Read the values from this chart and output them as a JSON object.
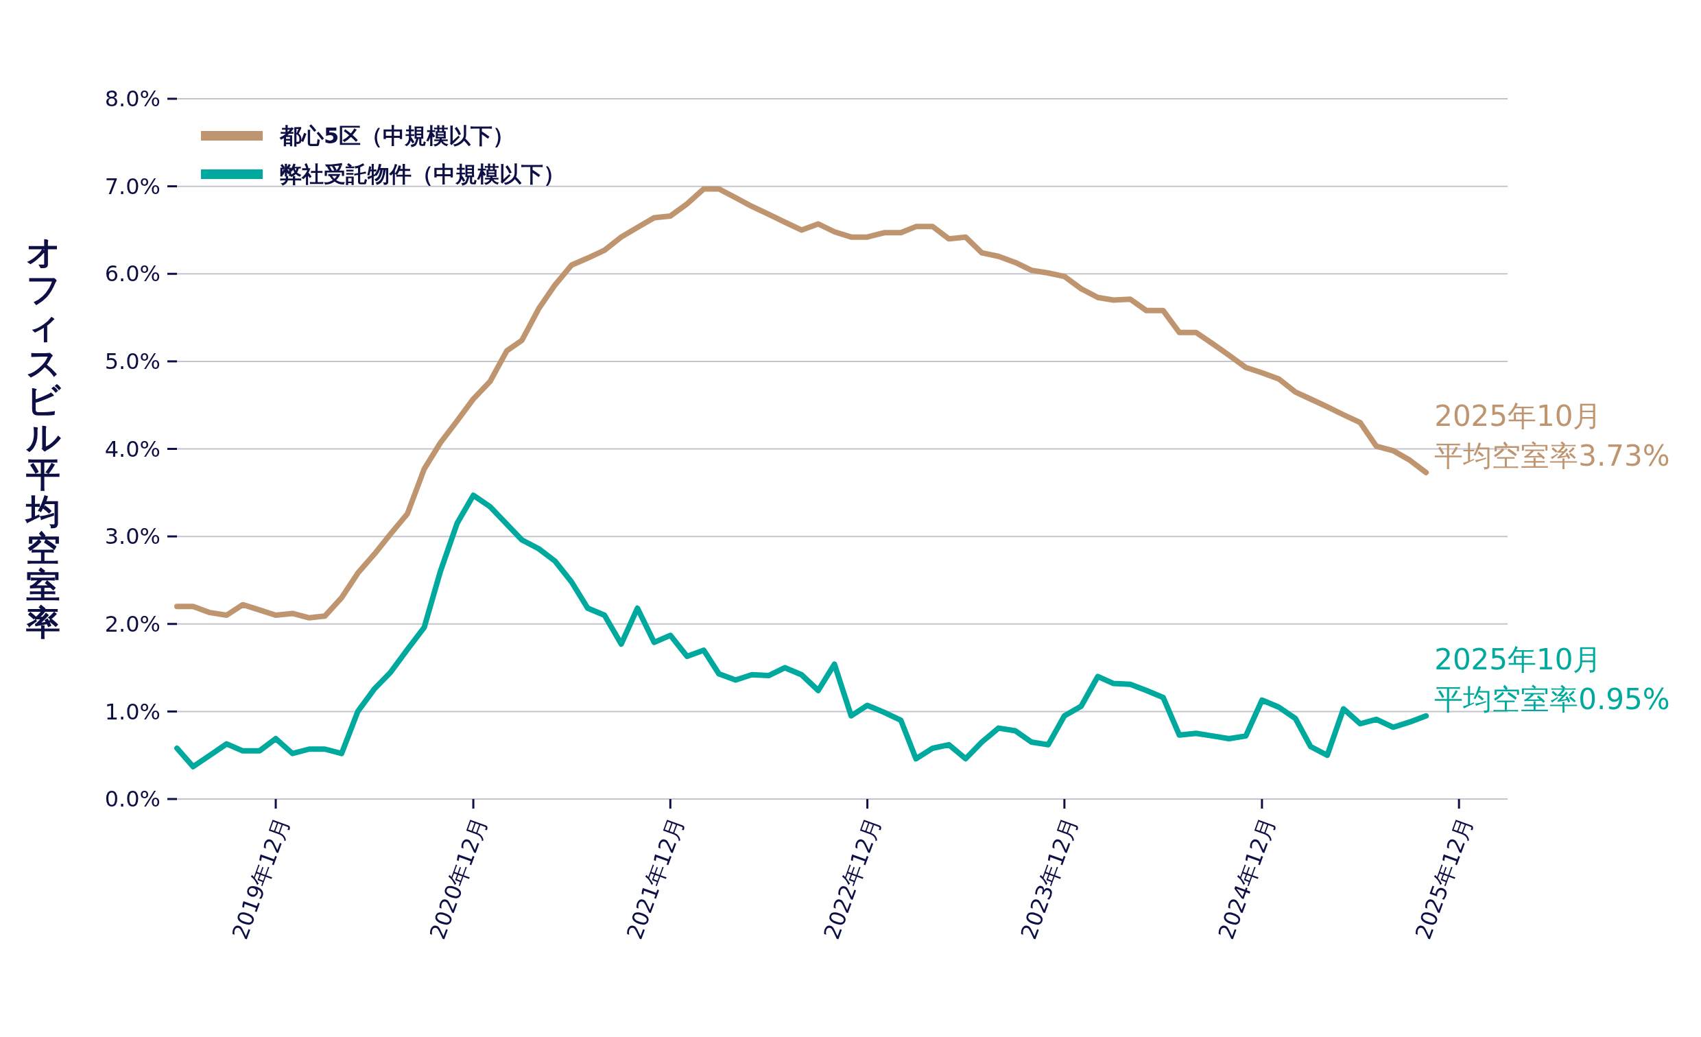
{
  "chart_data": {
    "type": "line",
    "ylabel": "オフィスビル平均空室率",
    "x": [
      "2019-06",
      "2019-07",
      "2019-08",
      "2019-09",
      "2019-10",
      "2019-11",
      "2019-12",
      "2020-01",
      "2020-02",
      "2020-03",
      "2020-04",
      "2020-05",
      "2020-06",
      "2020-07",
      "2020-08",
      "2020-09",
      "2020-10",
      "2020-11",
      "2020-12",
      "2021-01",
      "2021-02",
      "2021-03",
      "2021-04",
      "2021-05",
      "2021-06",
      "2021-07",
      "2021-08",
      "2021-09",
      "2021-10",
      "2021-11",
      "2021-12",
      "2022-01",
      "2022-02",
      "2022-03",
      "2022-04",
      "2022-05",
      "2022-06",
      "2022-07",
      "2022-08",
      "2022-09",
      "2022-10",
      "2022-11",
      "2022-12",
      "2023-01",
      "2023-02",
      "2023-03",
      "2023-04",
      "2023-05",
      "2023-06",
      "2023-07",
      "2023-08",
      "2023-09",
      "2023-10",
      "2023-11",
      "2023-12",
      "2024-01",
      "2024-02",
      "2024-03",
      "2024-04",
      "2024-05",
      "2024-06",
      "2024-07",
      "2024-08",
      "2024-09",
      "2024-10",
      "2024-11",
      "2024-12",
      "2025-01",
      "2025-02",
      "2025-03",
      "2025-04",
      "2025-05",
      "2025-06",
      "2025-07",
      "2025-08",
      "2025-09",
      "2025-10"
    ],
    "series": [
      {
        "name": "都心5区（中規模以下）",
        "color": "#bf9570",
        "values": [
          2.2,
          2.2,
          2.13,
          2.1,
          2.22,
          2.16,
          2.1,
          2.12,
          2.07,
          2.09,
          2.3,
          2.58,
          2.8,
          3.03,
          3.26,
          3.77,
          4.07,
          4.32,
          4.57,
          4.77,
          5.12,
          5.24,
          5.6,
          5.87,
          6.1,
          6.18,
          6.27,
          6.42,
          6.53,
          6.64,
          6.66,
          6.8,
          6.97,
          6.97,
          6.87,
          6.77,
          6.68,
          6.59,
          6.5,
          6.57,
          6.48,
          6.42,
          6.42,
          6.47,
          6.47,
          6.54,
          6.54,
          6.4,
          6.42,
          6.24,
          6.2,
          6.13,
          6.04,
          6.01,
          5.97,
          5.83,
          5.73,
          5.7,
          5.71,
          5.58,
          5.58,
          5.33,
          5.33,
          5.2,
          5.07,
          4.93,
          4.87,
          4.8,
          4.65,
          4.57,
          4.48,
          4.39,
          4.3,
          4.03,
          3.98,
          3.87,
          3.73
        ]
      },
      {
        "name": "弊社受託物件（中規模以下）",
        "color": "#00a99d",
        "values": [
          0.58,
          0.37,
          0.5,
          0.63,
          0.55,
          0.55,
          0.69,
          0.52,
          0.57,
          0.57,
          0.52,
          1.0,
          1.26,
          1.45,
          1.71,
          1.96,
          2.6,
          3.15,
          3.47,
          3.34,
          3.14,
          2.96,
          2.86,
          2.72,
          2.48,
          2.18,
          2.1,
          1.77,
          2.18,
          1.79,
          1.87,
          1.63,
          1.7,
          1.43,
          1.36,
          1.42,
          1.41,
          1.5,
          1.42,
          1.24,
          1.54,
          0.95,
          1.07,
          0.99,
          0.9,
          0.46,
          0.58,
          0.62,
          0.46,
          0.65,
          0.81,
          0.78,
          0.65,
          0.62,
          0.95,
          1.06,
          1.4,
          1.32,
          1.31,
          1.24,
          1.16,
          0.73,
          0.75,
          0.72,
          0.69,
          0.72,
          1.13,
          1.05,
          0.92,
          0.6,
          0.5,
          1.03,
          0.86,
          0.91,
          0.82,
          0.88,
          0.95
        ]
      }
    ],
    "xlim": [
      "2019-06",
      "2026-03"
    ],
    "xticks": [
      {
        "value": "2019-12",
        "label": "2019年12月"
      },
      {
        "value": "2020-12",
        "label": "2020年12月"
      },
      {
        "value": "2021-12",
        "label": "2021年12月"
      },
      {
        "value": "2022-12",
        "label": "2022年12月"
      },
      {
        "value": "2023-12",
        "label": "2023年12月"
      },
      {
        "value": "2024-12",
        "label": "2024年12月"
      },
      {
        "value": "2025-12",
        "label": "2025年12月"
      }
    ],
    "ylim": [
      0,
      8
    ],
    "yticks": [
      {
        "value": 0,
        "label": "0.0%"
      },
      {
        "value": 1,
        "label": "1.0%"
      },
      {
        "value": 2,
        "label": "2.0%"
      },
      {
        "value": 3,
        "label": "3.0%"
      },
      {
        "value": 4,
        "label": "4.0%"
      },
      {
        "value": 5,
        "label": "5.0%"
      },
      {
        "value": 6,
        "label": "6.0%"
      },
      {
        "value": 7,
        "label": "7.0%"
      },
      {
        "value": 8,
        "label": "8.0%"
      }
    ],
    "grid": "y",
    "legend": "top left",
    "line_style": "solid",
    "annotations": [
      {
        "text": "2025年10月",
        "x": "2025-10",
        "y": 3.73
      },
      {
        "text": "平均空室率3.73%",
        "x": "2025-10",
        "y": 3.73
      },
      {
        "text": "2025年10月",
        "x": "2025-10",
        "y": 0.95
      },
      {
        "text": "平均空室率0.95%",
        "x": "2025-10",
        "y": 0.95
      }
    ]
  }
}
